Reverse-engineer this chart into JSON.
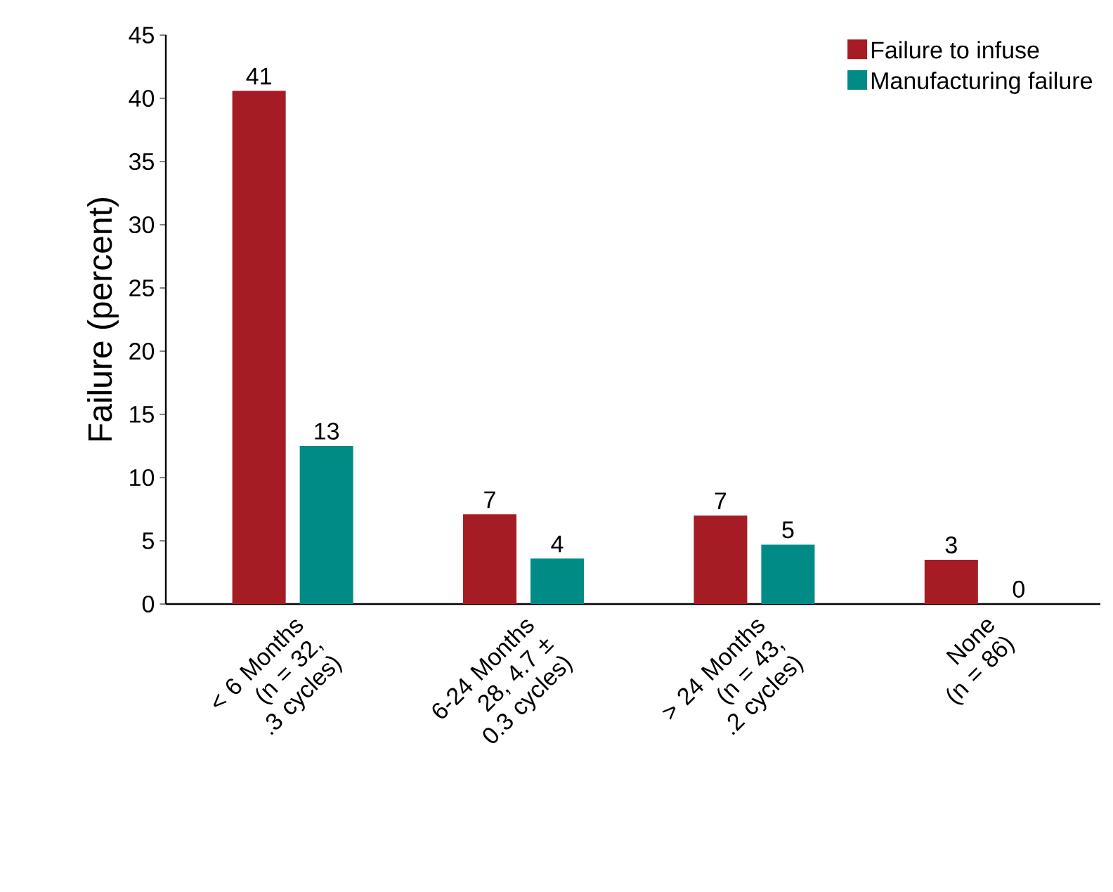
{
  "chart_data": {
    "type": "bar",
    "ylabel": "Failure (percent)",
    "categories": [
      "< 6 Months (n = 32, .3 cycles)",
      "6-24 Months 28, 4.7 ± 0.3 cycles)",
      "> 24 Months (n = 43, .2 cycles)",
      "None (n = 86)"
    ],
    "series": [
      {
        "name": "Failure to infuse",
        "color": "#a51c24",
        "values": [
          40.6,
          7.1,
          7.0,
          3.5
        ],
        "value_labels": [
          "41",
          "7",
          "7",
          "3"
        ]
      },
      {
        "name": "Manufacturing failure",
        "color": "#008b87",
        "values": [
          12.5,
          3.6,
          4.7,
          0
        ],
        "value_labels": [
          "13",
          "4",
          "5",
          "0"
        ]
      }
    ],
    "ylim": [
      0,
      45
    ],
    "yticks": [
      0,
      5,
      10,
      15,
      20,
      25,
      30,
      35,
      40,
      45
    ],
    "legend": "top right"
  }
}
